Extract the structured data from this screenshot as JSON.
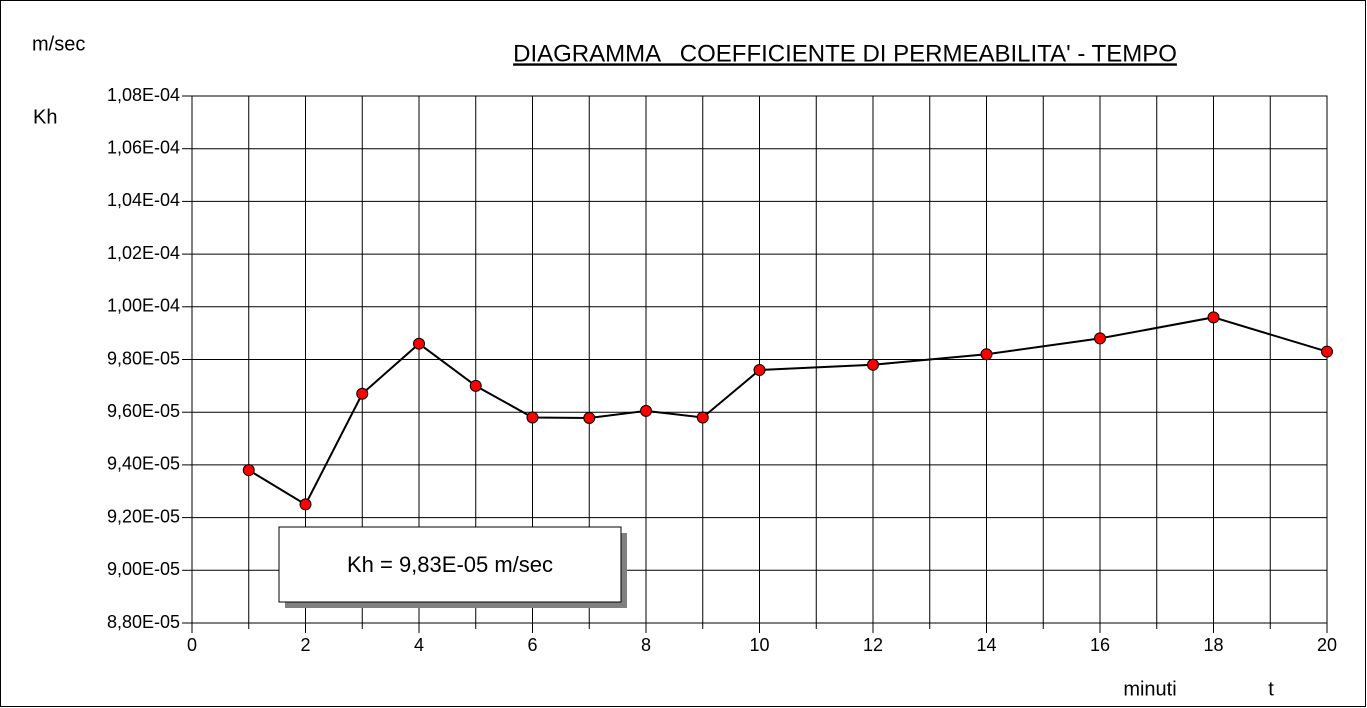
{
  "chart_data": {
    "type": "line",
    "title": "DIAGRAMMA   COEFFICIENTE DI PERMEABILITA' - TEMPO",
    "y_unit": "m/sec",
    "y_label": "Kh",
    "x_label": "minuti",
    "x_symbol": "t",
    "annotation": "Kh = 9,83E-05 m/sec",
    "x": [
      1,
      2,
      3,
      4,
      5,
      6,
      7,
      8,
      9,
      10,
      12,
      14,
      16,
      18,
      20
    ],
    "series": [
      {
        "color": "#000000",
        "marker_color": "#ff0000",
        "values": [
          9.38e-05,
          9.25e-05,
          9.67e-05,
          9.86e-05,
          9.7e-05,
          9.58e-05,
          9.578e-05,
          9.605e-05,
          9.58e-05,
          9.76e-05,
          9.78e-05,
          9.82e-05,
          9.88e-05,
          9.96e-05,
          9.83e-05
        ]
      }
    ],
    "xlim": [
      0,
      20
    ],
    "xticks": [
      0,
      2,
      4,
      6,
      8,
      10,
      12,
      14,
      16,
      18,
      20
    ],
    "xminorticks": [
      1,
      3,
      5,
      7,
      9,
      11,
      13,
      15,
      17,
      19
    ],
    "ylim": [
      8.8e-05,
      0.000108
    ],
    "yticks": [
      {
        "value": 8.8e-05,
        "label": "8,80E-05"
      },
      {
        "value": 9e-05,
        "label": "9,00E-05"
      },
      {
        "value": 9.2e-05,
        "label": "9,20E-05"
      },
      {
        "value": 9.4e-05,
        "label": "9,40E-05"
      },
      {
        "value": 9.6e-05,
        "label": "9,60E-05"
      },
      {
        "value": 9.8e-05,
        "label": "9,80E-05"
      },
      {
        "value": 0.0001,
        "label": "1,00E-04"
      },
      {
        "value": 0.000102,
        "label": "1,02E-04"
      },
      {
        "value": 0.000104,
        "label": "1,04E-04"
      },
      {
        "value": 0.000106,
        "label": "1,06E-04"
      },
      {
        "value": 0.000108,
        "label": "1,08E-04"
      }
    ],
    "grid": true
  }
}
